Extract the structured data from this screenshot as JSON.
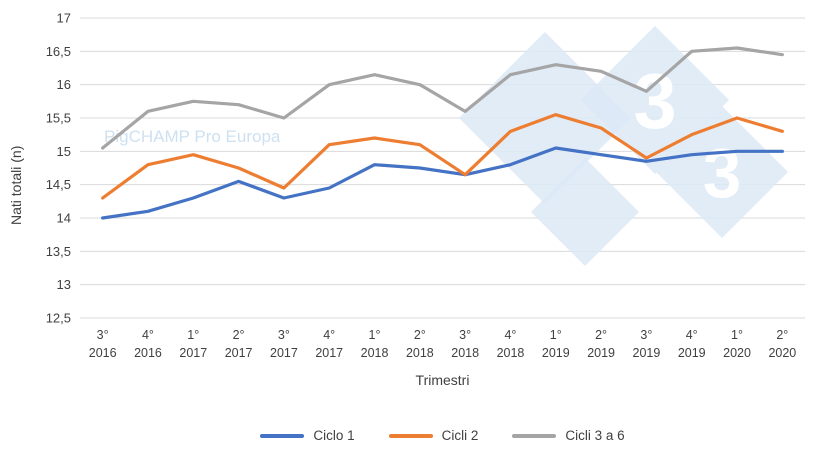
{
  "watermark": {
    "text": "PigCHAMP Pro Europa",
    "color": "#c9ddf0",
    "logo_color": "#dce9f6",
    "logo_digit": "3"
  },
  "chart_data": {
    "type": "line",
    "title": "",
    "xlabel": "Trimestri",
    "ylabel": "Nati totali (n)",
    "ylim": [
      12.5,
      17
    ],
    "grid": true,
    "legend_position": "bottom",
    "y_ticks": [
      {
        "v": 12.5,
        "label": "12,5"
      },
      {
        "v": 13,
        "label": "13"
      },
      {
        "v": 13.5,
        "label": "13,5"
      },
      {
        "v": 14,
        "label": "14"
      },
      {
        "v": 14.5,
        "label": "14,5"
      },
      {
        "v": 15,
        "label": "15"
      },
      {
        "v": 15.5,
        "label": "15,5"
      },
      {
        "v": 16,
        "label": "16"
      },
      {
        "v": 16.5,
        "label": "16,5"
      },
      {
        "v": 17,
        "label": "17"
      }
    ],
    "categories": [
      {
        "q": "3°",
        "y": "2016"
      },
      {
        "q": "4°",
        "y": "2016"
      },
      {
        "q": "1°",
        "y": "2017"
      },
      {
        "q": "2°",
        "y": "2017"
      },
      {
        "q": "3°",
        "y": "2017"
      },
      {
        "q": "4°",
        "y": "2017"
      },
      {
        "q": "1°",
        "y": "2018"
      },
      {
        "q": "2°",
        "y": "2018"
      },
      {
        "q": "3°",
        "y": "2018"
      },
      {
        "q": "4°",
        "y": "2018"
      },
      {
        "q": "1°",
        "y": "2019"
      },
      {
        "q": "2°",
        "y": "2019"
      },
      {
        "q": "3°",
        "y": "2019"
      },
      {
        "q": "4°",
        "y": "2019"
      },
      {
        "q": "1°",
        "y": "2020"
      },
      {
        "q": "2°",
        "y": "2020"
      }
    ],
    "series": [
      {
        "name": "Ciclo 1",
        "color": "#4472C4",
        "values": [
          14.0,
          14.1,
          14.3,
          14.55,
          14.3,
          14.45,
          14.8,
          14.75,
          14.65,
          14.8,
          15.05,
          14.95,
          14.85,
          14.95,
          15.0,
          15.0
        ]
      },
      {
        "name": "Cicli 2",
        "color": "#ED7D31",
        "values": [
          14.3,
          14.8,
          14.95,
          14.75,
          14.45,
          15.1,
          15.2,
          15.1,
          14.65,
          15.3,
          15.55,
          15.35,
          14.9,
          15.25,
          15.5,
          15.3
        ]
      },
      {
        "name": "Cicli 3 a 6",
        "color": "#A5A5A5",
        "values": [
          15.05,
          15.6,
          15.75,
          15.7,
          15.5,
          16.0,
          16.15,
          16.0,
          15.6,
          16.15,
          16.3,
          16.2,
          15.9,
          16.5,
          16.55,
          16.45
        ]
      }
    ]
  }
}
